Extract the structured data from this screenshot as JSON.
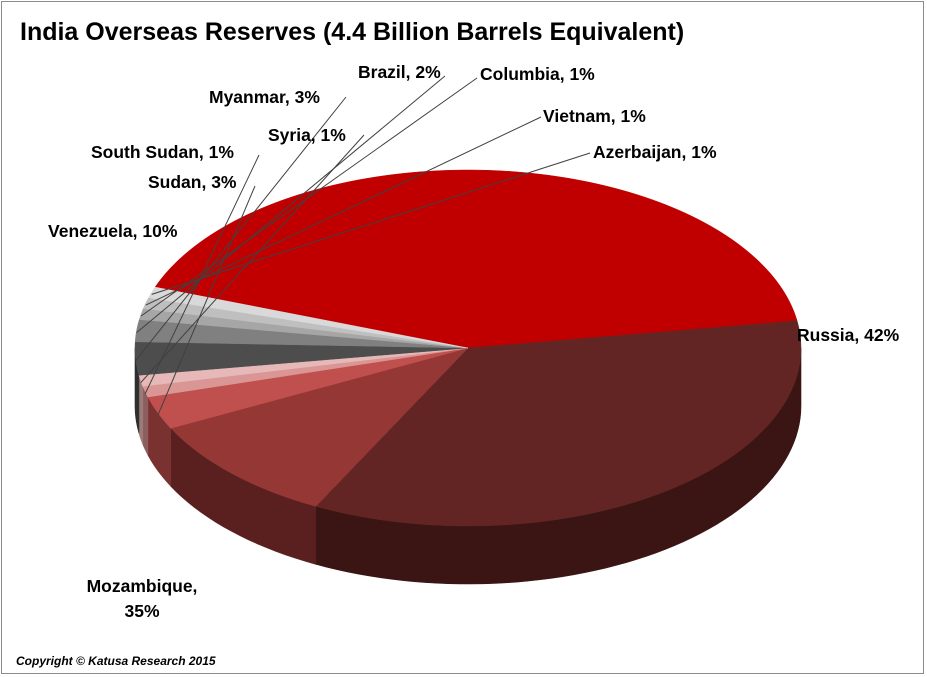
{
  "footer": {
    "copyright": "Copyright © Katusa Research 2015"
  },
  "chart_data": {
    "type": "pie",
    "title": "India Overseas Reserves (4.4 Billion Barrels Equivalent)",
    "style": "3d",
    "slices": [
      {
        "name": "Russia",
        "label": "Russia, 42%",
        "value": 42,
        "color": "#c00000",
        "side": "#6e0000"
      },
      {
        "name": "Mozambique",
        "label": "Mozambique, 35%",
        "label_lines": [
          "Mozambique,",
          "35%"
        ],
        "value": 35,
        "color": "#632523",
        "side": "#3a1514"
      },
      {
        "name": "Venezuela",
        "label": "Venezuela, 10%",
        "value": 10,
        "color": "#953735",
        "side": "#5a201f"
      },
      {
        "name": "Sudan",
        "label": "Sudan, 3%",
        "value": 3,
        "color": "#c0504d",
        "side": "#7a3230"
      },
      {
        "name": "South Sudan",
        "label": "South Sudan, 1%",
        "value": 1,
        "color": "#d99694",
        "side": "#8c5f5e"
      },
      {
        "name": "Syria",
        "label": "Syria, 1%",
        "value": 1,
        "color": "#e6b9b8",
        "side": "#9a7b7a"
      },
      {
        "name": "Myanmar",
        "label": "Myanmar, 3%",
        "value": 3,
        "color": "#4d4d4d",
        "side": "#2e2e2e"
      },
      {
        "name": "Brazil",
        "label": "Brazil, 2%",
        "value": 2,
        "color": "#808080",
        "side": "#555555"
      },
      {
        "name": "Columbia",
        "label": "Columbia, 1%",
        "value": 1,
        "color": "#a6a6a6",
        "side": "#6e6e6e"
      },
      {
        "name": "Vietnam",
        "label": "Vietnam, 1%",
        "value": 1,
        "color": "#bfbfbf",
        "side": "#808080"
      },
      {
        "name": "Azerbaijan",
        "label": "Azerbaijan, 1%",
        "value": 1,
        "color": "#d9d9d9",
        "side": "#939393"
      }
    ]
  }
}
